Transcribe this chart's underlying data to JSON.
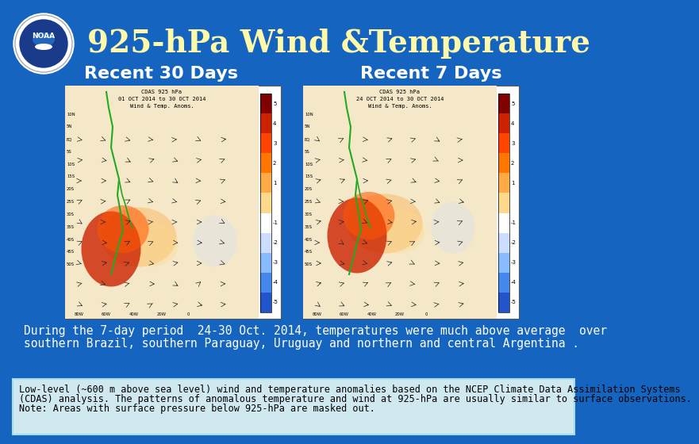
{
  "bg_color": "#1565C0",
  "title": "925-hPa Wind &Temperature",
  "title_color": "#FFFAAA",
  "title_fontsize": 28,
  "subtitle_left": "Recent 30 Days",
  "subtitle_right": "Recent 7 Days",
  "subtitle_color": "white",
  "subtitle_fontsize": 16,
  "description_line1": "During the 7-day period  24-30 Oct. 2014, temperatures were much above average  over",
  "description_line2": "southern Brazil, southern Paraguay, Uruguay and northern and central Argentina .",
  "description_color": "white",
  "description_fontsize": 10.5,
  "note_line1": "Low-level (~600 m above sea level) wind and temperature anomalies based on the NCEP Climate Data Assimilation Systems",
  "note_line2": "(CDAS) analysis. The patterns of anomalous temperature and wind at 925-hPa are usually similar to surface observations.",
  "note_line3": "Note: Areas with surface pressure below 925-hPa are masked out.",
  "note_box_color": "#D0E8F0",
  "note_box_edge": "#AADDEE",
  "note_fontsize": 8.5,
  "panel_left_lines": [
    "CDAS 925 hPa",
    "01 OCT 2014 to 30 OCT 2014",
    "Wind & Temp. Anoms."
  ],
  "panel_right_lines": [
    "CDAS 925 hPa",
    "24 OCT 2014 to 30 OCT 2014",
    "Wind & Temp. Anoms."
  ],
  "map_bg": "#F5E8C8",
  "noaa_logo_color": "#1a3a7a",
  "cb_colors_top_to_bottom": [
    "#800000",
    "#CC2200",
    "#FF4400",
    "#FF7700",
    "#FFAA44",
    "#FFD98B",
    "white",
    "#CCDDFF",
    "#88BBFF",
    "#4488EE",
    "#2255CC"
  ],
  "cb_labels": [
    "5",
    "4",
    "3",
    "2",
    "1",
    "",
    "-1",
    "-2",
    "-3",
    "-4",
    "-5"
  ]
}
